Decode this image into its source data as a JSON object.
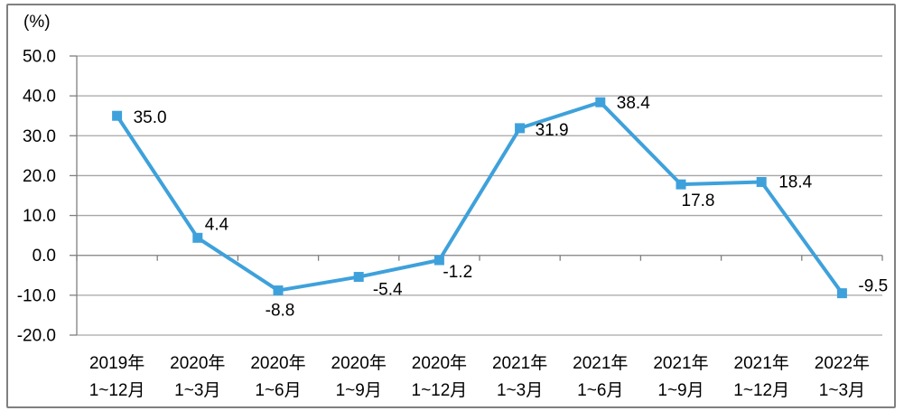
{
  "colors": {
    "line": "#3EA1DB",
    "marker": "#3EA1DB",
    "gridline": "#A6A6A6",
    "axis": "#7F7F7F",
    "text": "#000000",
    "border": "#808080",
    "background": "#FFFFFF"
  },
  "chart_data": {
    "type": "line",
    "title": "",
    "unit_label": "(%)",
    "categories": [
      "2019年\n1~12月",
      "2020年\n1~3月",
      "2020年\n1~6月",
      "2020年\n1~9月",
      "2020年\n1~12月",
      "2021年\n1~3月",
      "2021年\n1~6月",
      "2021年\n1~9月",
      "2021年\n1~12月",
      "2022年\n1~3月"
    ],
    "values": [
      35.0,
      4.4,
      -8.8,
      -5.4,
      -1.2,
      31.9,
      38.4,
      17.8,
      18.4,
      -9.5
    ],
    "value_labels": [
      "35.0",
      "4.4",
      "-8.8",
      "-5.4",
      "-1.2",
      "31.9",
      "38.4",
      "17.8",
      "18.4",
      "-9.5"
    ],
    "xlabel": "",
    "ylabel": "(%)",
    "ylim": [
      -20.0,
      50.0
    ],
    "ytick_step": 10.0,
    "ytick_labels": [
      "50.0",
      "40.0",
      "30.0",
      "20.0",
      "10.0",
      "0.0",
      "-10.0",
      "-20.0"
    ],
    "grid": "horizontal",
    "legend": "none",
    "marker_style": "square"
  }
}
